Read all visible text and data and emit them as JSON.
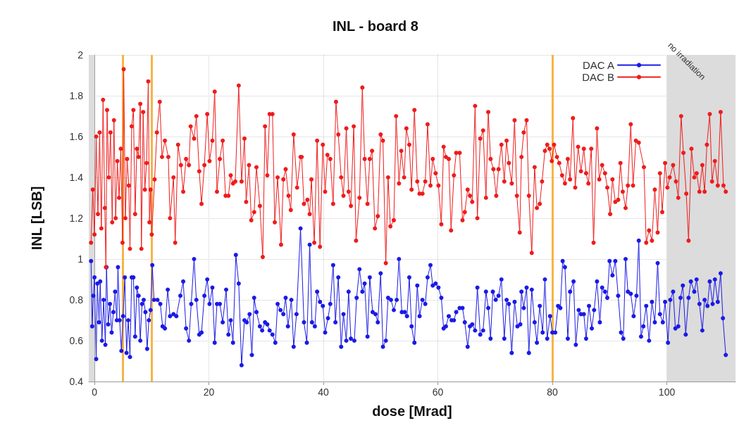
{
  "chart_data": {
    "type": "line",
    "title": "INL - board 8",
    "xlabel": "dose [Mrad]",
    "ylabel": "INL [LSB]",
    "xlim": [
      -1,
      112
    ],
    "xticks": [
      0,
      20,
      40,
      60,
      80,
      100
    ],
    "ylim": [
      0.4,
      2
    ],
    "yticks": [
      0.4,
      0.6,
      0.8,
      1,
      1.2,
      1.4,
      1.6,
      1.8,
      2
    ],
    "grid": true,
    "legend": "top right",
    "marker": "circle",
    "line_style": "solid",
    "ref_lines": [
      {
        "axis": "x",
        "value": 5,
        "color": "#f5b547"
      },
      {
        "axis": "x",
        "value": 10,
        "color": "#f5b547"
      },
      {
        "axis": "x",
        "value": 80,
        "color": "#f5b547"
      }
    ],
    "bands": [
      {
        "axis": "x",
        "from": -1,
        "to": 0,
        "color": "#dcdcdc"
      },
      {
        "axis": "x",
        "from": 100,
        "to": 112,
        "label": "no irradiation",
        "color": "#dcdcdc"
      }
    ],
    "series": [
      {
        "name": "DAC A",
        "color": "#1a1ae6",
        "x": [
          -0.6,
          -0.4,
          -0.2,
          0,
          0.3,
          0.5,
          0.8,
          1,
          1.3,
          1.6,
          1.9,
          2.1,
          2.4,
          2.7,
          3,
          3.3,
          3.6,
          3.9,
          4.1,
          4.4,
          4.7,
          5,
          5.3,
          5.6,
          5.9,
          6.2,
          6.5,
          6.8,
          7.1,
          7.4,
          7.7,
          8,
          8.3,
          8.6,
          8.9,
          9.2,
          9.5,
          9.8,
          10.1,
          10.4,
          11,
          11.5,
          11.9,
          12.3,
          12.8,
          13.2,
          13.8,
          14.3,
          15,
          15.5,
          16,
          16.5,
          16.9,
          17.4,
          17.8,
          18.3,
          18.7,
          19.2,
          19.7,
          20.1,
          20.6,
          21,
          21.4,
          21.9,
          22.4,
          23,
          23.4,
          23.8,
          24.2,
          24.7,
          25.2,
          25.7,
          26.2,
          26.6,
          27.1,
          27.5,
          27.9,
          28.3,
          28.9,
          29.3,
          29.8,
          30.2,
          30.6,
          31.1,
          31.6,
          32,
          32.5,
          33,
          33.4,
          33.8,
          34.4,
          34.8,
          35.3,
          36,
          36.6,
          37.1,
          37.6,
          38,
          38.5,
          38.9,
          39.4,
          39.9,
          40.3,
          40.8,
          41.2,
          41.7,
          42.1,
          42.6,
          43.1,
          43.5,
          44,
          44.4,
          44.8,
          45.4,
          45.8,
          46.3,
          46.8,
          47.2,
          47.7,
          48.1,
          48.6,
          49.1,
          49.5,
          50,
          50.4,
          50.9,
          51.3,
          51.8,
          52.3,
          52.8,
          53.2,
          53.7,
          54.2,
          54.6,
          55,
          55.4,
          55.9,
          56.4,
          56.8,
          57.3,
          57.8,
          58.2,
          58.7,
          59.1,
          59.6,
          60.1,
          60.6,
          61,
          61.4,
          61.9,
          62.4,
          62.8,
          63.2,
          63.8,
          64.3,
          64.7,
          65.2,
          65.6,
          66,
          66.5,
          66.9,
          67.4,
          67.9,
          68.4,
          68.8,
          69.2,
          69.6,
          70.1,
          70.6,
          71.1,
          71.6,
          72,
          72.4,
          72.9,
          73.4,
          73.9,
          74.4,
          74.6,
          75,
          75.5,
          75.9,
          76.4,
          76.9,
          77.3,
          77.8,
          78.3,
          78.7,
          79.1,
          79.6,
          80,
          80.5,
          81,
          81.4,
          81.8,
          82.2,
          82.7,
          83.1,
          83.7,
          84.1,
          84.6,
          85,
          85.5,
          85.9,
          86.4,
          86.9,
          87.3,
          87.8,
          88.3,
          88.7,
          89.2,
          89.6,
          90,
          90.5,
          91,
          91.5,
          92,
          92.4,
          92.8,
          93.2,
          93.7,
          94.2,
          94.7,
          95.1,
          95.5,
          95.9,
          96.4,
          96.9,
          97.4,
          97.9,
          98.4,
          98.8,
          99.3,
          99.7,
          100.2,
          100.6,
          101.1,
          101.5,
          102,
          102.4,
          102.8,
          103.3,
          103.8,
          104.2,
          104.8,
          105.2,
          105.7,
          106.2,
          106.6,
          107.1,
          107.5,
          108,
          108.4,
          108.9,
          109.4,
          109.8,
          110.3
        ],
        "values": [
          0.99,
          0.67,
          0.82,
          0.91,
          0.51,
          0.88,
          0.69,
          0.89,
          0.6,
          0.8,
          0.58,
          0.96,
          0.68,
          0.78,
          0.64,
          0.74,
          0.84,
          0.7,
          0.96,
          0.7,
          0.55,
          0.72,
          0.91,
          0.54,
          0.7,
          0.52,
          0.91,
          0.91,
          0.62,
          0.86,
          0.82,
          0.6,
          0.78,
          0.8,
          0.74,
          0.56,
          0.7,
          0.75,
          0.97,
          0.8,
          0.8,
          0.78,
          0.67,
          0.66,
          0.85,
          0.72,
          0.73,
          0.72,
          0.82,
          0.89,
          0.66,
          0.6,
          0.78,
          1,
          0.8,
          0.63,
          0.64,
          0.82,
          0.9,
          0.78,
          0.86,
          0.59,
          0.78,
          0.78,
          0.69,
          0.85,
          0.63,
          0.7,
          0.59,
          1.02,
          0.88,
          0.48,
          0.7,
          0.69,
          0.73,
          0.53,
          0.81,
          0.74,
          0.67,
          0.65,
          0.69,
          0.68,
          0.65,
          0.63,
          0.59,
          0.78,
          0.75,
          0.73,
          0.81,
          0.67,
          0.8,
          0.57,
          0.73,
          1.15,
          0.69,
          0.59,
          1.07,
          0.69,
          0.67,
          0.84,
          0.79,
          0.77,
          0.64,
          0.71,
          0.78,
          0.97,
          0.69,
          0.91,
          0.57,
          0.73,
          0.6,
          0.84,
          0.61,
          0.6,
          0.81,
          0.95,
          0.84,
          0.88,
          0.62,
          0.91,
          0.74,
          0.73,
          0.69,
          0.93,
          0.57,
          0.6,
          0.81,
          0.8,
          0.75,
          0.8,
          1,
          0.74,
          0.74,
          0.72,
          0.91,
          0.67,
          0.59,
          0.87,
          0.72,
          0.8,
          0.78,
          0.91,
          0.97,
          0.87,
          0.88,
          0.86,
          0.81,
          0.66,
          0.67,
          0.72,
          0.7,
          0.7,
          0.74,
          0.76,
          0.76,
          0.69,
          0.57,
          0.67,
          0.68,
          0.65,
          0.86,
          0.63,
          0.65,
          0.84,
          0.76,
          0.61,
          0.84,
          0.8,
          0.82,
          0.9,
          0.61,
          0.8,
          0.78,
          0.54,
          0.79,
          0.67,
          0.68,
          0.84,
          0.76,
          0.86,
          0.54,
          0.85,
          0.69,
          0.59,
          0.77,
          0.64,
          0.9,
          0.61,
          0.72,
          0.64,
          0.64,
          0.77,
          0.76,
          0.99,
          0.96,
          0.61,
          0.84,
          0.89,
          0.58,
          0.75,
          0.73,
          0.73,
          0.61,
          0.77,
          0.66,
          0.75,
          0.89,
          0.69,
          0.86,
          0.84,
          0.81,
          0.99,
          0.92,
          0.99,
          0.82,
          0.64,
          0.61,
          1,
          0.84,
          0.83,
          0.72,
          0.82,
          1.09,
          0.62,
          0.67,
          0.77,
          0.6,
          0.79,
          0.69,
          0.98,
          0.73,
          0.69,
          0.79,
          0.59,
          0.8,
          0.84,
          0.66,
          0.67,
          0.81,
          0.87,
          0.63,
          0.81,
          0.89,
          0.84,
          0.9,
          0.78,
          0.65,
          0.8,
          0.77,
          0.89,
          0.78,
          0.9,
          0.79,
          0.93,
          0.71,
          0.53
        ]
      },
      {
        "name": "DAC B",
        "color": "#ee1c1c",
        "x": [
          -0.6,
          -0.3,
          0,
          0.3,
          0.6,
          0.9,
          1.2,
          1.5,
          1.8,
          2,
          2.2,
          2.5,
          2.8,
          3.1,
          3.4,
          3.7,
          4,
          4.3,
          4.6,
          4.9,
          5.1,
          5.4,
          5.7,
          6,
          6.2,
          6.5,
          6.8,
          7.1,
          7.4,
          7.7,
          8,
          8.2,
          8.5,
          8.8,
          9.1,
          9.4,
          9.6,
          9.8,
          10,
          10.5,
          10.9,
          11.4,
          11.8,
          12.3,
          12.9,
          13.2,
          13.8,
          14.1,
          14.6,
          15.1,
          15.5,
          16,
          16.5,
          16.8,
          17.4,
          17.8,
          18.3,
          18.7,
          19.2,
          19.7,
          20.1,
          20.6,
          21,
          21.4,
          21.9,
          22.4,
          22.9,
          23.4,
          23.8,
          24.2,
          24.6,
          25.2,
          25.7,
          26.2,
          26.5,
          27,
          27.4,
          27.9,
          28.3,
          28.9,
          29.4,
          29.8,
          30.2,
          30.6,
          31.1,
          31.5,
          32,
          32.6,
          33,
          33.4,
          33.9,
          34.3,
          34.8,
          35.4,
          36,
          36.2,
          36.6,
          37.2,
          37.6,
          37.9,
          38.4,
          38.9,
          39.4,
          39.9,
          40.3,
          40.7,
          41.2,
          41.7,
          42.2,
          42.6,
          43.1,
          43.5,
          44,
          44.4,
          44.8,
          45.3,
          45.7,
          46.3,
          46.8,
          47.2,
          47.7,
          48.1,
          48.5,
          49,
          49.5,
          50,
          50.4,
          50.9,
          51.3,
          51.7,
          52.3,
          52.7,
          53.2,
          53.6,
          54.1,
          54.5,
          55,
          55.4,
          55.9,
          56.4,
          56.8,
          57.3,
          57.8,
          58.2,
          58.7,
          59.1,
          59.6,
          60.1,
          60.6,
          61,
          61.4,
          61.9,
          62.3,
          62.8,
          63.2,
          63.8,
          64.3,
          64.7,
          65.2,
          65.6,
          66,
          66.5,
          66.9,
          67.4,
          67.9,
          68.4,
          68.8,
          69.2,
          69.7,
          70.2,
          70.6,
          71.1,
          71.6,
          72,
          72.4,
          72.9,
          73.4,
          73.8,
          74.3,
          74.6,
          75,
          75.5,
          75.9,
          76.4,
          76.9,
          77.3,
          77.8,
          78.2,
          78.7,
          79.1,
          79.5,
          79.9,
          80.3,
          80.8,
          81.2,
          81.7,
          82.2,
          82.7,
          83.1,
          83.6,
          84,
          84.5,
          85,
          85.5,
          85.9,
          86.3,
          86.8,
          87.2,
          87.8,
          88.2,
          88.7,
          89.2,
          89.6,
          90.1,
          90.5,
          91,
          91.5,
          91.9,
          92.3,
          92.8,
          93.2,
          93.7,
          94.1,
          94.6,
          95.1,
          96,
          96.4,
          96.9,
          97.4,
          97.9,
          98.4,
          98.8,
          99.2,
          99.7,
          100.1,
          100.5,
          101.1,
          101.6,
          102,
          102.5,
          102.9,
          103.4,
          103.8,
          104.3,
          104.8,
          105.2,
          105.7,
          106.2,
          106.6,
          107,
          107.5,
          107.9,
          108.4,
          108.9,
          109.4,
          109.9,
          110.3
        ],
        "values": [
          1.08,
          1.34,
          1.12,
          1.6,
          1.22,
          1.62,
          1.15,
          1.78,
          1.25,
          0.96,
          1.73,
          1.4,
          1.62,
          1.18,
          1.68,
          1.2,
          1.48,
          1.3,
          1.54,
          1.08,
          1.93,
          1.2,
          1.49,
          1.36,
          1.05,
          1.65,
          1.73,
          1.22,
          1.54,
          1.5,
          1.76,
          1.05,
          1.72,
          1.34,
          1.47,
          1.87,
          1.18,
          1.34,
          1.12,
          1.39,
          1.62,
          1.77,
          1.5,
          1.58,
          1.5,
          1.2,
          1.4,
          1.08,
          1.56,
          1.46,
          1.33,
          1.49,
          1.46,
          1.65,
          1.59,
          1.7,
          1.43,
          1.27,
          1.46,
          1.71,
          1.48,
          1.58,
          1.82,
          1.33,
          1.49,
          1.58,
          1.31,
          1.31,
          1.41,
          1.37,
          1.38,
          1.85,
          1.38,
          1.59,
          1.28,
          1.46,
          1.19,
          1.23,
          1.45,
          1.26,
          1.01,
          1.65,
          1.41,
          1.71,
          1.71,
          1.18,
          1.4,
          1.07,
          1.39,
          1.44,
          1.31,
          1.24,
          1.61,
          1.35,
          1.5,
          1.5,
          1.27,
          1.29,
          1.22,
          1.39,
          1.08,
          1.58,
          1.06,
          1.56,
          1.33,
          1.51,
          1.49,
          1.27,
          1.77,
          1.61,
          1.4,
          1.31,
          1.64,
          1.33,
          1.26,
          1.65,
          1.09,
          1.3,
          1.84,
          1.49,
          1.27,
          1.49,
          1.53,
          1.15,
          1.21,
          1.61,
          1.58,
          0.98,
          1.4,
          1.16,
          1.19,
          1.7,
          1.37,
          1.53,
          1.4,
          1.64,
          1.56,
          1.34,
          1.73,
          1.38,
          1.32,
          1.32,
          1.38,
          1.66,
          1.36,
          1.49,
          1.42,
          1.36,
          1.17,
          1.55,
          1.5,
          1.49,
          1.14,
          1.41,
          1.52,
          1.52,
          1.19,
          1.23,
          1.34,
          1.31,
          1.28,
          1.75,
          1.2,
          1.59,
          1.63,
          1.3,
          1.72,
          1.49,
          1.44,
          1.31,
          1.44,
          1.56,
          1.38,
          1.58,
          1.47,
          1.37,
          1.68,
          1.31,
          1.13,
          1.5,
          1.62,
          1.68,
          1.31,
          1.03,
          1.45,
          1.25,
          1.27,
          1.38,
          1.53,
          1.56,
          1.54,
          1.48,
          1.56,
          1.5,
          1.47,
          1.41,
          1.37,
          1.49,
          1.39,
          1.69,
          1.35,
          1.55,
          1.43,
          1.54,
          1.42,
          1.37,
          1.54,
          1.08,
          1.64,
          1.39,
          1.46,
          1.42,
          1.35,
          1.22,
          1.39,
          1.28,
          1.29,
          1.47,
          1.33,
          1.25,
          1.36,
          1.66,
          1.36,
          1.58,
          1.57,
          1.45,
          1.08,
          1.14,
          1.09,
          1.34,
          1.13,
          1.42,
          1.23,
          1.47,
          1.35,
          1.4,
          1.46,
          1.38,
          1.3,
          1.7,
          1.52,
          1.32,
          1.09,
          1.54,
          1.4,
          1.42,
          1.33,
          1.46,
          1.33,
          1.56,
          1.71,
          1.38,
          1.48,
          1.36,
          1.72,
          1.36,
          1.33
        ]
      }
    ]
  }
}
